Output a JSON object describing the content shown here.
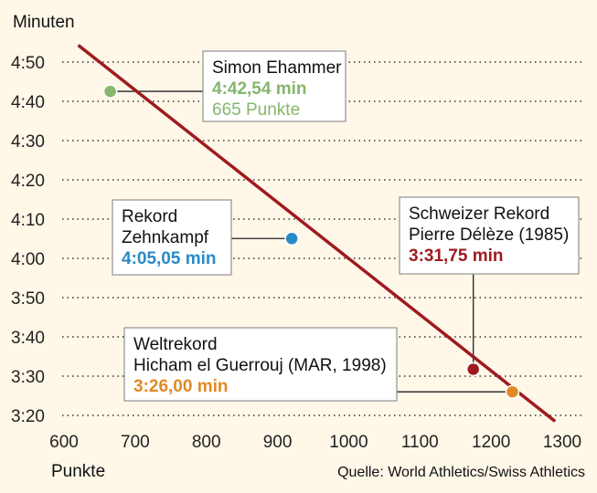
{
  "chart_data": {
    "type": "line",
    "ylabel": "Minuten",
    "xlabel": "Punkte",
    "source": "Quelle: World Athletics/Swiss Athletics",
    "x_ticks": [
      600,
      700,
      800,
      900,
      1000,
      1100,
      1200,
      1300
    ],
    "y_ticks": [
      {
        "seconds": 320,
        "label": "3:20"
      },
      {
        "seconds": 330,
        "label": "3:30"
      },
      {
        "seconds": 340,
        "label": "3:40"
      },
      {
        "seconds": 350,
        "label": "3:50"
      },
      {
        "seconds": 360,
        "label": "4:00"
      },
      {
        "seconds": 370,
        "label": "4:10"
      },
      {
        "seconds": 380,
        "label": "4:20"
      },
      {
        "seconds": 390,
        "label": "4:30"
      },
      {
        "seconds": 400,
        "label": "4:40"
      },
      {
        "seconds": 410,
        "label": "4:50"
      }
    ],
    "xlim": [
      600,
      1300
    ],
    "ylim": [
      320,
      410
    ],
    "grid": true,
    "series": [
      {
        "color": "#9e1b20",
        "points": [
          {
            "x": 620,
            "y": 414.3
          },
          {
            "x": 1290,
            "y": 318.5
          }
        ]
      }
    ],
    "markers": [
      {
        "name": "ehammer",
        "x": 665,
        "y": 402.54,
        "color": "#86b66c",
        "lines": [
          "Simon Ehammer"
        ],
        "value": "4:42,54 min",
        "extra": "665 Punkte"
      },
      {
        "name": "zehnkampf",
        "x": 920,
        "y": 365.05,
        "color": "#2a8ac6",
        "lines": [
          "Rekord",
          "Zehnkampf"
        ],
        "value": "4:05,05 min"
      },
      {
        "name": "schweizer-rekord",
        "x": 1175,
        "y": 331.75,
        "color": "#9e1b20",
        "lines": [
          "Schweizer Rekord",
          "Pierre Délèze (1985)"
        ],
        "value": "3:31,75 min"
      },
      {
        "name": "weltrekord",
        "x": 1230,
        "y": 326.0,
        "color": "#e08a25",
        "lines": [
          "Weltrekord",
          "Hicham el Guerrouj (MAR, 1998)"
        ],
        "value": "3:26,00 min"
      }
    ]
  }
}
